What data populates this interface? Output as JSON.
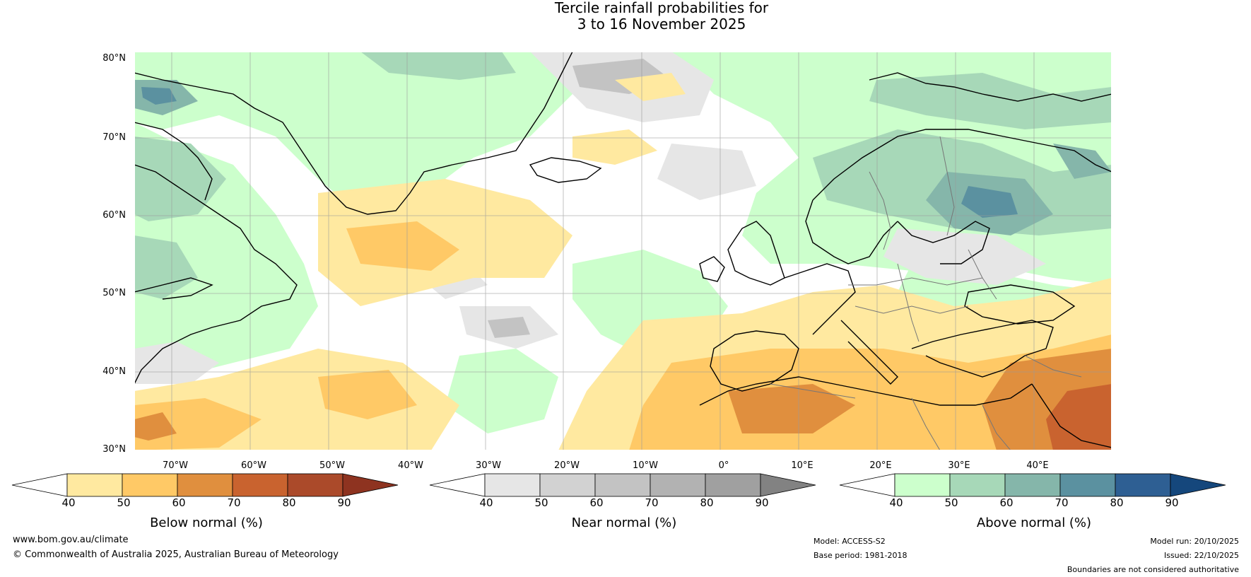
{
  "title": {
    "line1": "Tercile rainfall probabilities for",
    "line2": "3 to 16 November 2025"
  },
  "map": {
    "lat_labels": [
      "80°N",
      "70°N",
      "60°N",
      "50°N",
      "40°N",
      "30°N"
    ],
    "lon_labels": [
      "70°W",
      "60°W",
      "50°W",
      "40°W",
      "30°W",
      "20°W",
      "10°W",
      "0°",
      "10°E",
      "20°E",
      "30°E",
      "40°E"
    ]
  },
  "legends": [
    {
      "title": "Below normal (%)",
      "ticks": [
        "40",
        "50",
        "60",
        "70",
        "80",
        "90"
      ],
      "colors": [
        "#ffffff",
        "#ffe9a0",
        "#ffc966",
        "#e08f3e",
        "#c9632f",
        "#ab4a2a",
        "#8e3320"
      ]
    },
    {
      "title": "Near normal (%)",
      "ticks": [
        "40",
        "50",
        "60",
        "70",
        "80",
        "90"
      ],
      "colors": [
        "#ffffff",
        "#e6e6e6",
        "#d2d2d2",
        "#c3c3c3",
        "#b2b2b2",
        "#a0a0a0",
        "#828282"
      ]
    },
    {
      "title": "Above normal (%)",
      "ticks": [
        "40",
        "50",
        "60",
        "70",
        "80",
        "90"
      ],
      "colors": [
        "#ffffff",
        "#ccffcc",
        "#a7d8b8",
        "#85b6aa",
        "#5b91a0",
        "#2e5f93",
        "#15477c"
      ]
    }
  ],
  "footer": {
    "website": "www.bom.gov.au/climate",
    "copyright": "© Commonwealth of Australia 2025, Australian Bureau of Meteorology",
    "model": "Model: ACCESS-S2",
    "base_period": "Base period: 1981-2018",
    "model_run": "Model run: 20/10/2025",
    "issued": "Issued: 22/10/2025",
    "disclaimer": "Boundaries are not considered authoritative"
  }
}
